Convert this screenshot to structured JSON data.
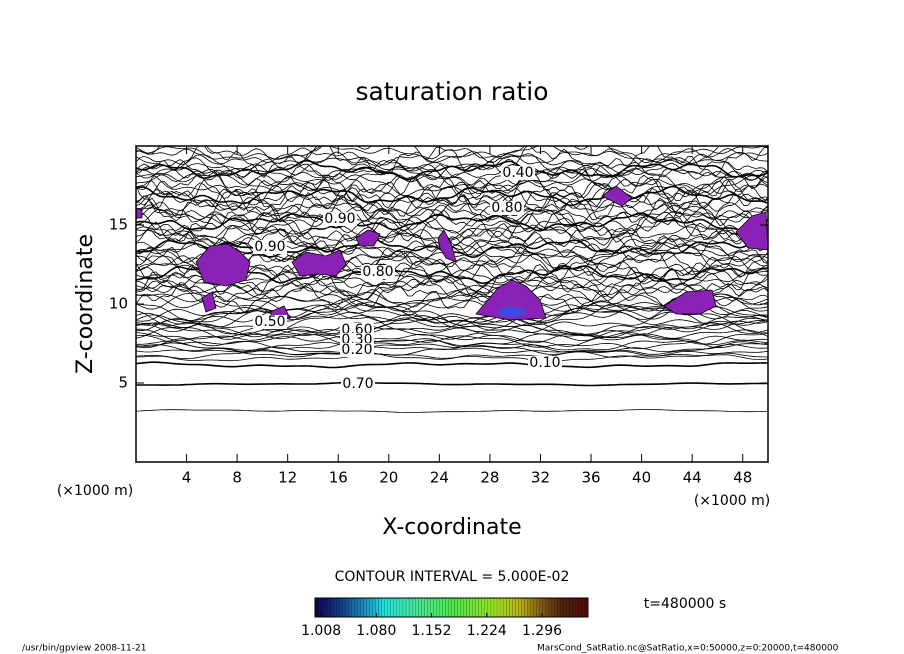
{
  "chart_data": {
    "type": "contour",
    "title": "saturation ratio",
    "x_label": "X-coordinate",
    "y_label": "Z-coordinate",
    "x_unit": "(×1000 m)",
    "y_unit": "(×1000 m)",
    "xlim": [
      0,
      50
    ],
    "ylim": [
      0,
      20
    ],
    "xticks": [
      4,
      8,
      12,
      16,
      20,
      24,
      28,
      32,
      36,
      40,
      44,
      48
    ],
    "yticks": [
      5,
      10,
      15
    ],
    "contour_interval_text": "CONTOUR INTERVAL = 5.000E-02",
    "contour_labels": [
      {
        "value": 0.4,
        "label": "0.40"
      },
      {
        "value": 0.8,
        "label": "0.80"
      },
      {
        "value": 0.9,
        "label": "0.90"
      },
      {
        "value": 0.9,
        "label": "0.90"
      },
      {
        "value": 0.8,
        "label": "0.80"
      },
      {
        "value": 0.5,
        "label": "0.50"
      },
      {
        "value": 0.6,
        "label": "0.60"
      },
      {
        "value": 0.3,
        "label": "0.30"
      },
      {
        "value": 0.2,
        "label": "0.20"
      },
      {
        "value": 0.1,
        "label": "0.10"
      },
      {
        "value": 0.7,
        "label": "0.70"
      }
    ],
    "colorbar": {
      "lim": [
        1.0,
        1.356
      ],
      "ticks": [
        1.008,
        {
          "value": 1.08,
          "label": "1.080"
        },
        1.152,
        1.224,
        1.296
      ]
    },
    "time_text": "t=480000 s",
    "footer_left": "/usr/bin/gpview  2008-11-21",
    "footer_right": "MarsCond_SatRatio.nc@SatRatio,x=0:50000,z=0:20000,t=480000"
  }
}
